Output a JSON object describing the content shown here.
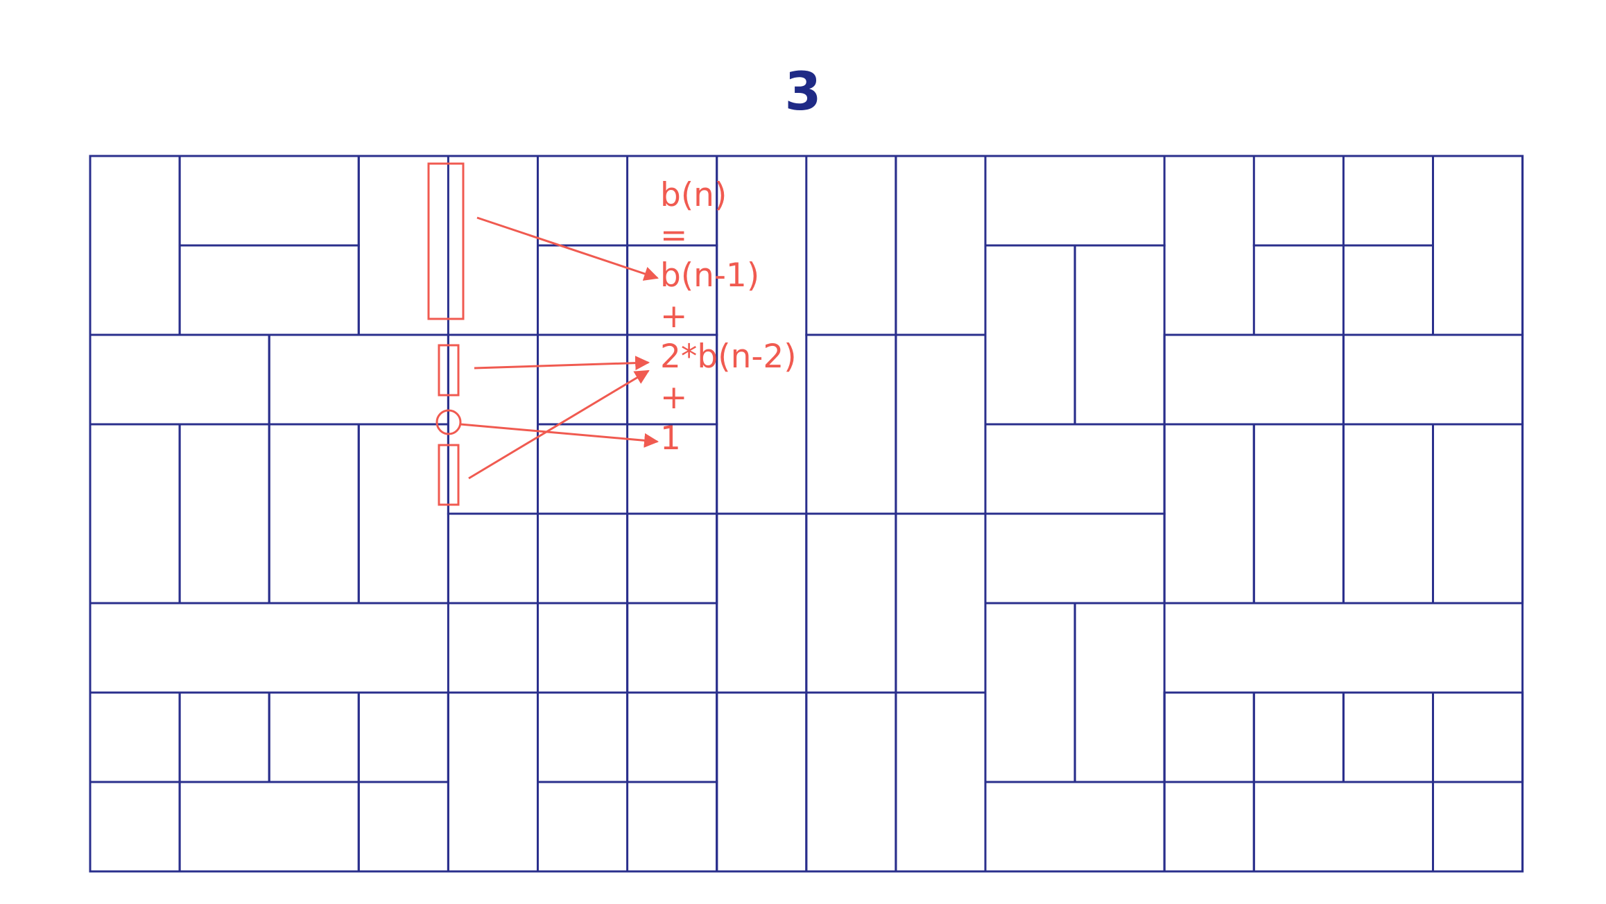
{
  "title": "3",
  "formula": [
    "b(n)",
    "=",
    "b(n-1)",
    "+",
    "2*b(n-2)",
    "+",
    "1"
  ],
  "colors": {
    "tile": "#2a2f8c",
    "annotation": "#f05a50",
    "background": "#ffffff"
  },
  "tiling": {
    "description_free": true,
    "columns": 16,
    "rows": 8,
    "h_dominoes": [
      [
        1,
        0
      ],
      [
        1,
        1
      ],
      [
        0,
        2
      ],
      [
        2,
        2
      ],
      [
        0,
        6
      ],
      [
        2,
        6
      ],
      [
        1,
        7
      ],
      [
        1,
        6
      ],
      [
        5,
        0
      ],
      [
        5,
        1
      ],
      [
        5,
        2
      ],
      [
        4,
        4
      ],
      [
        5,
        3
      ],
      [
        5,
        4
      ],
      [
        5,
        6
      ],
      [
        5,
        7
      ],
      [
        4,
        5
      ],
      [
        10,
        0
      ],
      [
        10,
        3
      ],
      [
        10,
        4
      ],
      [
        10,
        7
      ],
      [
        13,
        0
      ],
      [
        13,
        1
      ],
      [
        12,
        2
      ],
      [
        14,
        2
      ],
      [
        12,
        6
      ],
      [
        14,
        6
      ],
      [
        13,
        7
      ],
      [
        13,
        6
      ]
    ],
    "v_dominoes": [
      [
        0,
        0
      ],
      [
        3,
        0
      ],
      [
        0,
        3
      ],
      [
        1,
        3
      ],
      [
        2,
        3
      ],
      [
        3,
        3
      ],
      [
        0,
        6
      ],
      [
        3,
        6
      ],
      [
        5,
        1
      ],
      [
        4,
        2
      ],
      [
        4,
        6
      ],
      [
        5,
        5
      ],
      [
        7,
        4
      ],
      [
        7,
        6
      ],
      [
        6,
        0
      ],
      [
        6,
        2
      ],
      [
        6,
        4
      ],
      [
        6,
        6
      ],
      [
        8,
        0
      ],
      [
        8,
        2
      ],
      [
        8,
        4
      ],
      [
        8,
        6
      ],
      [
        9,
        0
      ],
      [
        9,
        2
      ],
      [
        9,
        4
      ],
      [
        9,
        6
      ],
      [
        10,
        1
      ],
      [
        11,
        1
      ],
      [
        11,
        5
      ],
      [
        10,
        5
      ],
      [
        14,
        0
      ],
      [
        14,
        3
      ],
      [
        13,
        3
      ],
      [
        12,
        3
      ],
      [
        15,
        3
      ],
      [
        15,
        0
      ],
      [
        12,
        6
      ],
      [
        15,
        6
      ]
    ]
  }
}
